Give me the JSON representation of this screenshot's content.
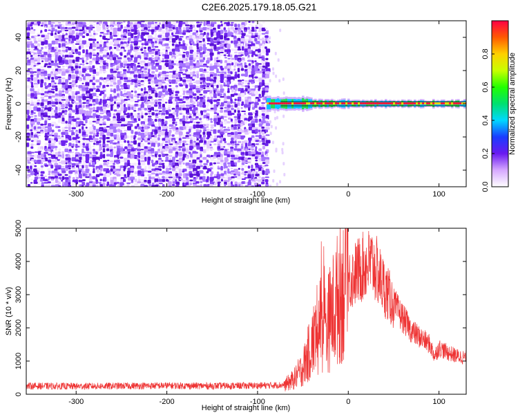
{
  "title": "C2E6.2025.179.18.05.G21",
  "colors": {
    "signal": "#ee2222",
    "noise": "#7a2cf0",
    "snr_line": "#ee3333"
  },
  "chart_data": [
    {
      "type": "heatmap",
      "xlabel": "Height of straight line (km)",
      "ylabel": "Frequency (Hz)",
      "xlim": [
        -355,
        130
      ],
      "ylim": [
        -50,
        50
      ],
      "x_ticks": [
        "-300",
        "-200",
        "-100",
        "0",
        "100"
      ],
      "y_ticks": [
        "-40",
        "-20",
        "0",
        "20",
        "40"
      ],
      "colorbar": {
        "label": "Normalized spectral amplitude",
        "range": [
          0,
          1
        ],
        "ticks": [
          "0.0",
          "0.2",
          "0.4",
          "0.6",
          "0.8"
        ]
      },
      "regions": [
        {
          "x_range": [
            -355,
            -90
          ],
          "freq_range": [
            -50,
            50
          ],
          "amplitude_range": [
            0.05,
            0.25
          ]
        },
        {
          "x_range": [
            -90,
            130
          ],
          "freq_center": 0,
          "amplitude_max": 1.0
        }
      ]
    },
    {
      "type": "line",
      "xlabel": "Height of straight line (km)",
      "ylabel": "SNR (10 * v/v)",
      "xlim": [
        -355,
        130
      ],
      "ylim": [
        0,
        5000
      ],
      "x_ticks": [
        "-300",
        "-200",
        "-100",
        "0",
        "100"
      ],
      "y_ticks": [
        "0",
        "1000",
        "2000",
        "3000",
        "4000",
        "5000"
      ],
      "series": [
        {
          "x": [
            -355,
            -300,
            -250,
            -200,
            -150,
            -100,
            -70,
            -60,
            -50,
            -40,
            -30,
            -25,
            -20,
            -10,
            0,
            10,
            20,
            25,
            30,
            40,
            50,
            60,
            70,
            80,
            90,
            95,
            100,
            110,
            120,
            130
          ],
          "y": [
            250,
            240,
            250,
            260,
            250,
            260,
            280,
            450,
            800,
            1500,
            2200,
            2000,
            2300,
            3000,
            3400,
            3700,
            3900,
            3950,
            3800,
            3200,
            2700,
            2300,
            1900,
            1700,
            1500,
            1150,
            1400,
            1250,
            1150,
            1100
          ]
        }
      ]
    }
  ]
}
